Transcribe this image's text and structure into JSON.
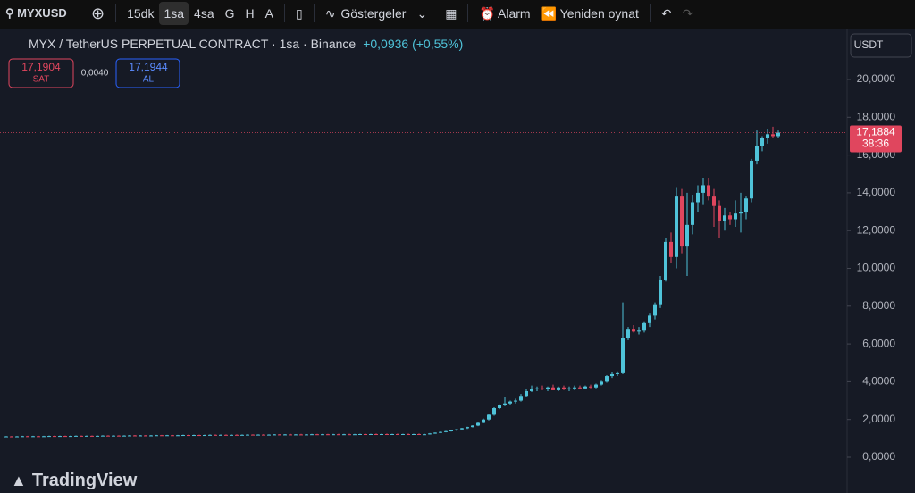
{
  "toolbar": {
    "symbol": "MYXUSD",
    "intervals": [
      "15dk",
      "1sa",
      "4sa",
      "G",
      "H",
      "A"
    ],
    "indicators": "Göstergeler",
    "alarm": "Alarm",
    "replay": "Yeniden oynat"
  },
  "header": {
    "title": "MYX / TetherUS PERPETUAL CONTRACT · 1sa · Binance",
    "change": "+0,0936 (+0,55%)",
    "sell_price": "17,1904",
    "sell": "SAT",
    "spread": "0,0040",
    "buy_price": "17,1944",
    "buy": "AL"
  },
  "currency": "USDT",
  "countdown": "38:36",
  "brand": "TradingView",
  "chart_data": {
    "type": "candlestick",
    "up_color": "#4fc3d9",
    "down_color": "#e0465e",
    "ylim": [
      -2.0,
      21.4
    ],
    "yticks": [
      {
        "value": 0,
        "label": "0,0000"
      },
      {
        "value": 2,
        "label": "2,0000"
      },
      {
        "value": 4,
        "label": "4,0000"
      },
      {
        "value": 6,
        "label": "6,0000"
      },
      {
        "value": 8,
        "label": "8,0000"
      },
      {
        "value": 10,
        "label": "10,0000"
      },
      {
        "value": 12,
        "label": "12,0000"
      },
      {
        "value": 14,
        "label": "14,0000"
      },
      {
        "value": 16,
        "label": "16,0000"
      },
      {
        "value": 18,
        "label": "18,0000"
      },
      {
        "value": 20,
        "label": "20,0000"
      }
    ],
    "price_line": {
      "value": 17.1884,
      "label": "17,1884"
    },
    "ohlc": [
      [
        1.1,
        1.13,
        1.08,
        1.11
      ],
      [
        1.11,
        1.13,
        1.08,
        1.1
      ],
      [
        1.1,
        1.13,
        1.08,
        1.11
      ],
      [
        1.11,
        1.14,
        1.09,
        1.12
      ],
      [
        1.12,
        1.14,
        1.09,
        1.11
      ],
      [
        1.11,
        1.14,
        1.09,
        1.12
      ],
      [
        1.12,
        1.14,
        1.09,
        1.11
      ],
      [
        1.11,
        1.14,
        1.09,
        1.12
      ],
      [
        1.12,
        1.15,
        1.1,
        1.13
      ],
      [
        1.13,
        1.15,
        1.1,
        1.12
      ],
      [
        1.12,
        1.15,
        1.1,
        1.13
      ],
      [
        1.13,
        1.15,
        1.1,
        1.12
      ],
      [
        1.12,
        1.15,
        1.1,
        1.13
      ],
      [
        1.13,
        1.16,
        1.11,
        1.14
      ],
      [
        1.14,
        1.16,
        1.11,
        1.13
      ],
      [
        1.13,
        1.16,
        1.11,
        1.14
      ],
      [
        1.14,
        1.16,
        1.11,
        1.13
      ],
      [
        1.13,
        1.16,
        1.11,
        1.14
      ],
      [
        1.14,
        1.17,
        1.12,
        1.15
      ],
      [
        1.15,
        1.17,
        1.12,
        1.14
      ],
      [
        1.14,
        1.17,
        1.12,
        1.15
      ],
      [
        1.15,
        1.17,
        1.12,
        1.14
      ],
      [
        1.14,
        1.17,
        1.12,
        1.15
      ],
      [
        1.15,
        1.18,
        1.13,
        1.16
      ],
      [
        1.16,
        1.18,
        1.13,
        1.15
      ],
      [
        1.15,
        1.18,
        1.13,
        1.16
      ],
      [
        1.16,
        1.18,
        1.13,
        1.15
      ],
      [
        1.15,
        1.18,
        1.13,
        1.16
      ],
      [
        1.16,
        1.19,
        1.14,
        1.17
      ],
      [
        1.17,
        1.19,
        1.14,
        1.16
      ],
      [
        1.16,
        1.19,
        1.14,
        1.17
      ],
      [
        1.17,
        1.19,
        1.14,
        1.16
      ],
      [
        1.16,
        1.19,
        1.14,
        1.17
      ],
      [
        1.17,
        1.2,
        1.15,
        1.18
      ],
      [
        1.18,
        1.2,
        1.15,
        1.17
      ],
      [
        1.17,
        1.2,
        1.15,
        1.18
      ],
      [
        1.18,
        1.2,
        1.15,
        1.17
      ],
      [
        1.17,
        1.2,
        1.15,
        1.18
      ],
      [
        1.18,
        1.21,
        1.16,
        1.19
      ],
      [
        1.19,
        1.21,
        1.16,
        1.18
      ],
      [
        1.18,
        1.21,
        1.16,
        1.19
      ],
      [
        1.19,
        1.21,
        1.16,
        1.18
      ],
      [
        1.18,
        1.21,
        1.16,
        1.19
      ],
      [
        1.19,
        1.22,
        1.17,
        1.18
      ],
      [
        1.18,
        1.21,
        1.16,
        1.19
      ],
      [
        1.19,
        1.22,
        1.17,
        1.2
      ],
      [
        1.2,
        1.22,
        1.17,
        1.19
      ],
      [
        1.19,
        1.22,
        1.17,
        1.2
      ],
      [
        1.2,
        1.23,
        1.18,
        1.19
      ],
      [
        1.19,
        1.22,
        1.17,
        1.2
      ],
      [
        1.2,
        1.23,
        1.18,
        1.21
      ],
      [
        1.21,
        1.23,
        1.18,
        1.2
      ],
      [
        1.2,
        1.23,
        1.18,
        1.21
      ],
      [
        1.21,
        1.24,
        1.19,
        1.2
      ],
      [
        1.2,
        1.23,
        1.18,
        1.21
      ],
      [
        1.21,
        1.24,
        1.19,
        1.2
      ],
      [
        1.2,
        1.23,
        1.18,
        1.21
      ],
      [
        1.21,
        1.24,
        1.19,
        1.22
      ],
      [
        1.22,
        1.24,
        1.19,
        1.21
      ],
      [
        1.21,
        1.24,
        1.19,
        1.22
      ],
      [
        1.22,
        1.24,
        1.19,
        1.21
      ],
      [
        1.21,
        1.24,
        1.19,
        1.22
      ],
      [
        1.22,
        1.25,
        1.2,
        1.21
      ],
      [
        1.21,
        1.24,
        1.19,
        1.22
      ],
      [
        1.22,
        1.25,
        1.2,
        1.21
      ],
      [
        1.21,
        1.24,
        1.19,
        1.22
      ],
      [
        1.22,
        1.25,
        1.2,
        1.23
      ],
      [
        1.23,
        1.25,
        1.2,
        1.22
      ],
      [
        1.22,
        1.25,
        1.2,
        1.23
      ],
      [
        1.23,
        1.26,
        1.21,
        1.22
      ],
      [
        1.22,
        1.25,
        1.2,
        1.23
      ],
      [
        1.23,
        1.26,
        1.21,
        1.22
      ],
      [
        1.22,
        1.25,
        1.2,
        1.23
      ],
      [
        1.23,
        1.26,
        1.21,
        1.22
      ],
      [
        1.22,
        1.25,
        1.2,
        1.23
      ],
      [
        1.23,
        1.26,
        1.21,
        1.22
      ],
      [
        1.22,
        1.25,
        1.2,
        1.23
      ],
      [
        1.23,
        1.26,
        1.21,
        1.22
      ],
      [
        1.22,
        1.25,
        1.2,
        1.22
      ],
      [
        1.22,
        1.28,
        1.2,
        1.26
      ],
      [
        1.26,
        1.32,
        1.24,
        1.3
      ],
      [
        1.3,
        1.36,
        1.28,
        1.34
      ],
      [
        1.34,
        1.4,
        1.32,
        1.38
      ],
      [
        1.38,
        1.44,
        1.36,
        1.42
      ],
      [
        1.42,
        1.5,
        1.4,
        1.48
      ],
      [
        1.48,
        1.56,
        1.45,
        1.54
      ],
      [
        1.54,
        1.62,
        1.5,
        1.6
      ],
      [
        1.6,
        1.7,
        1.58,
        1.68
      ],
      [
        1.68,
        1.85,
        1.65,
        1.82
      ],
      [
        1.82,
        2.05,
        1.8,
        2.0
      ],
      [
        2.0,
        2.3,
        1.95,
        2.25
      ],
      [
        2.25,
        2.65,
        2.2,
        2.6
      ],
      [
        2.6,
        2.8,
        2.55,
        2.75
      ],
      [
        2.75,
        3.2,
        2.7,
        2.85
      ],
      [
        2.85,
        3.0,
        2.75,
        2.95
      ],
      [
        2.95,
        3.1,
        2.85,
        3.0
      ],
      [
        3.0,
        3.35,
        2.95,
        3.25
      ],
      [
        3.25,
        3.6,
        3.2,
        3.5
      ],
      [
        3.5,
        3.8,
        3.45,
        3.6
      ],
      [
        3.6,
        3.75,
        3.5,
        3.65
      ],
      [
        3.65,
        3.8,
        3.55,
        3.6
      ],
      [
        3.6,
        3.75,
        3.5,
        3.7
      ],
      [
        3.7,
        3.85,
        3.55,
        3.55
      ],
      [
        3.55,
        3.75,
        3.5,
        3.7
      ],
      [
        3.7,
        3.8,
        3.55,
        3.6
      ],
      [
        3.6,
        3.75,
        3.5,
        3.65
      ],
      [
        3.65,
        3.8,
        3.55,
        3.7
      ],
      [
        3.7,
        3.8,
        3.6,
        3.65
      ],
      [
        3.65,
        3.8,
        3.6,
        3.75
      ],
      [
        3.75,
        3.85,
        3.65,
        3.7
      ],
      [
        3.7,
        3.9,
        3.65,
        3.85
      ],
      [
        3.85,
        4.05,
        3.8,
        4.0
      ],
      [
        4.0,
        4.35,
        3.95,
        4.3
      ],
      [
        4.3,
        4.5,
        4.2,
        4.4
      ],
      [
        4.4,
        4.55,
        4.3,
        4.45
      ],
      [
        4.45,
        8.2,
        4.4,
        6.3
      ],
      [
        6.3,
        6.9,
        6.2,
        6.8
      ],
      [
        6.8,
        7.0,
        6.6,
        6.65
      ],
      [
        6.65,
        6.9,
        6.5,
        6.7
      ],
      [
        6.7,
        7.2,
        6.6,
        7.1
      ],
      [
        7.1,
        7.6,
        6.9,
        7.5
      ],
      [
        7.5,
        8.2,
        7.3,
        8.1
      ],
      [
        8.1,
        9.6,
        7.9,
        9.4
      ],
      [
        9.4,
        11.6,
        9.3,
        11.4
      ],
      [
        11.4,
        11.9,
        10.3,
        10.6
      ],
      [
        10.6,
        14.3,
        10.0,
        13.8
      ],
      [
        13.8,
        14.2,
        10.8,
        11.2
      ],
      [
        11.2,
        14.0,
        9.6,
        12.3
      ],
      [
        12.3,
        13.9,
        11.8,
        13.5
      ],
      [
        13.5,
        14.4,
        13.0,
        14.0
      ],
      [
        14.0,
        14.8,
        13.4,
        14.4
      ],
      [
        14.4,
        14.8,
        13.6,
        13.8
      ],
      [
        13.8,
        14.2,
        12.2,
        13.3
      ],
      [
        13.3,
        13.6,
        11.6,
        12.5
      ],
      [
        12.5,
        13.2,
        12.0,
        12.8
      ],
      [
        12.8,
        13.0,
        12.3,
        12.6
      ],
      [
        12.6,
        13.6,
        12.2,
        12.9
      ],
      [
        12.9,
        14.0,
        11.9,
        13.0
      ],
      [
        13.0,
        13.8,
        12.6,
        13.7
      ],
      [
        13.7,
        15.8,
        13.5,
        15.7
      ],
      [
        15.7,
        17.3,
        15.5,
        16.5
      ],
      [
        16.5,
        17.0,
        16.2,
        16.9
      ],
      [
        16.9,
        17.4,
        16.6,
        17.1
      ],
      [
        17.1,
        17.5,
        16.9,
        17.0
      ],
      [
        17.0,
        17.3,
        16.9,
        17.1884
      ]
    ]
  }
}
